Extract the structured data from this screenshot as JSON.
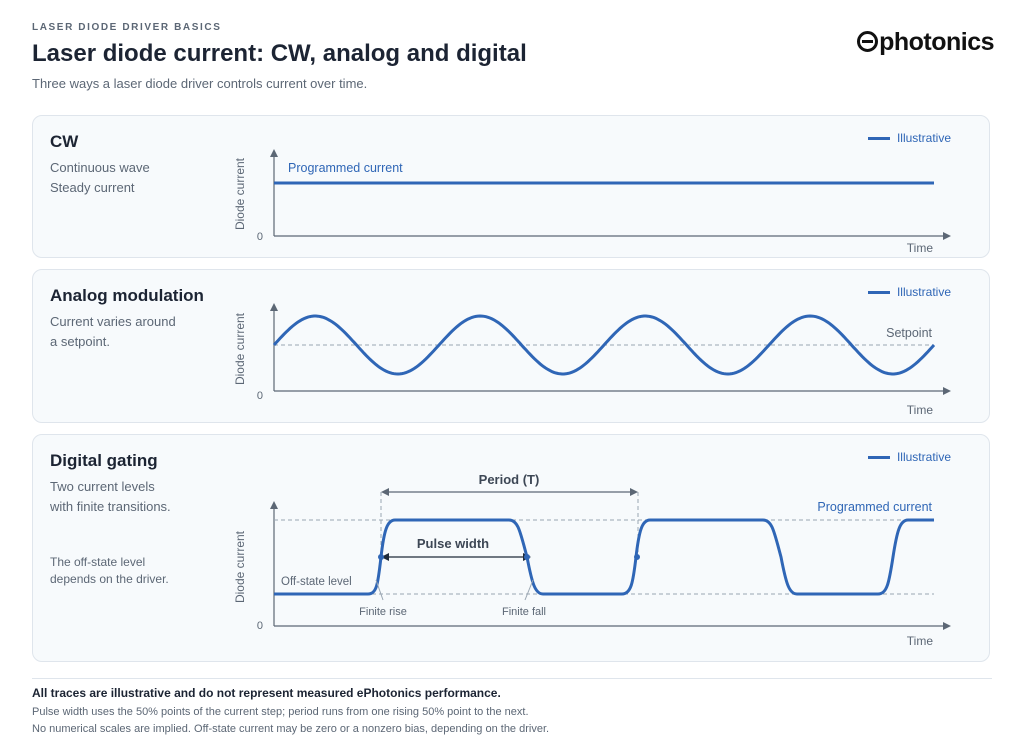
{
  "header": {
    "eyebrow": "LASER DIODE DRIVER BASICS",
    "title": "Laser diode current: CW, analog and digital",
    "subtitle": "Three ways a laser diode driver controls current over time.",
    "logo_text": "photonics"
  },
  "colors": {
    "trace": "#2f66b6",
    "axis": "#5c6775",
    "guide": "#9aa6b2"
  },
  "panels": {
    "cw": {
      "title": "CW",
      "description": "Continuous wave\nSteady current",
      "legend": "Illustrative",
      "ylabel": "Diode current",
      "xlabel": "Time",
      "zero": "0",
      "trace_label": "Programmed current"
    },
    "analog": {
      "title": "Analog modulation",
      "description": "Current varies around\na setpoint.",
      "legend": "Illustrative",
      "ylabel": "Diode current",
      "xlabel": "Time",
      "zero": "0",
      "setpoint_label": "Setpoint"
    },
    "digital": {
      "title": "Digital gating",
      "description": "Two current levels\nwith finite transitions.",
      "note": "The off-state level\ndepends on the driver.",
      "legend": "Illustrative",
      "ylabel": "Diode current",
      "xlabel": "Time",
      "zero": "0",
      "period_label": "Period (T)",
      "pulse_width_label": "Pulse width",
      "programmed_label": "Programmed current",
      "offstate_label": "Off-state level",
      "rise_label": "Finite rise",
      "fall_label": "Finite fall"
    }
  },
  "footer": {
    "disclaimer": "All traces are illustrative and do not represent measured ePhotonics performance.",
    "note1": "Pulse width uses the 50% points of the current step; period runs from one rising 50% point to the next.",
    "note2": "No numerical scales are implied. Off-state current may be zero or a nonzero bias, depending on the driver."
  }
}
